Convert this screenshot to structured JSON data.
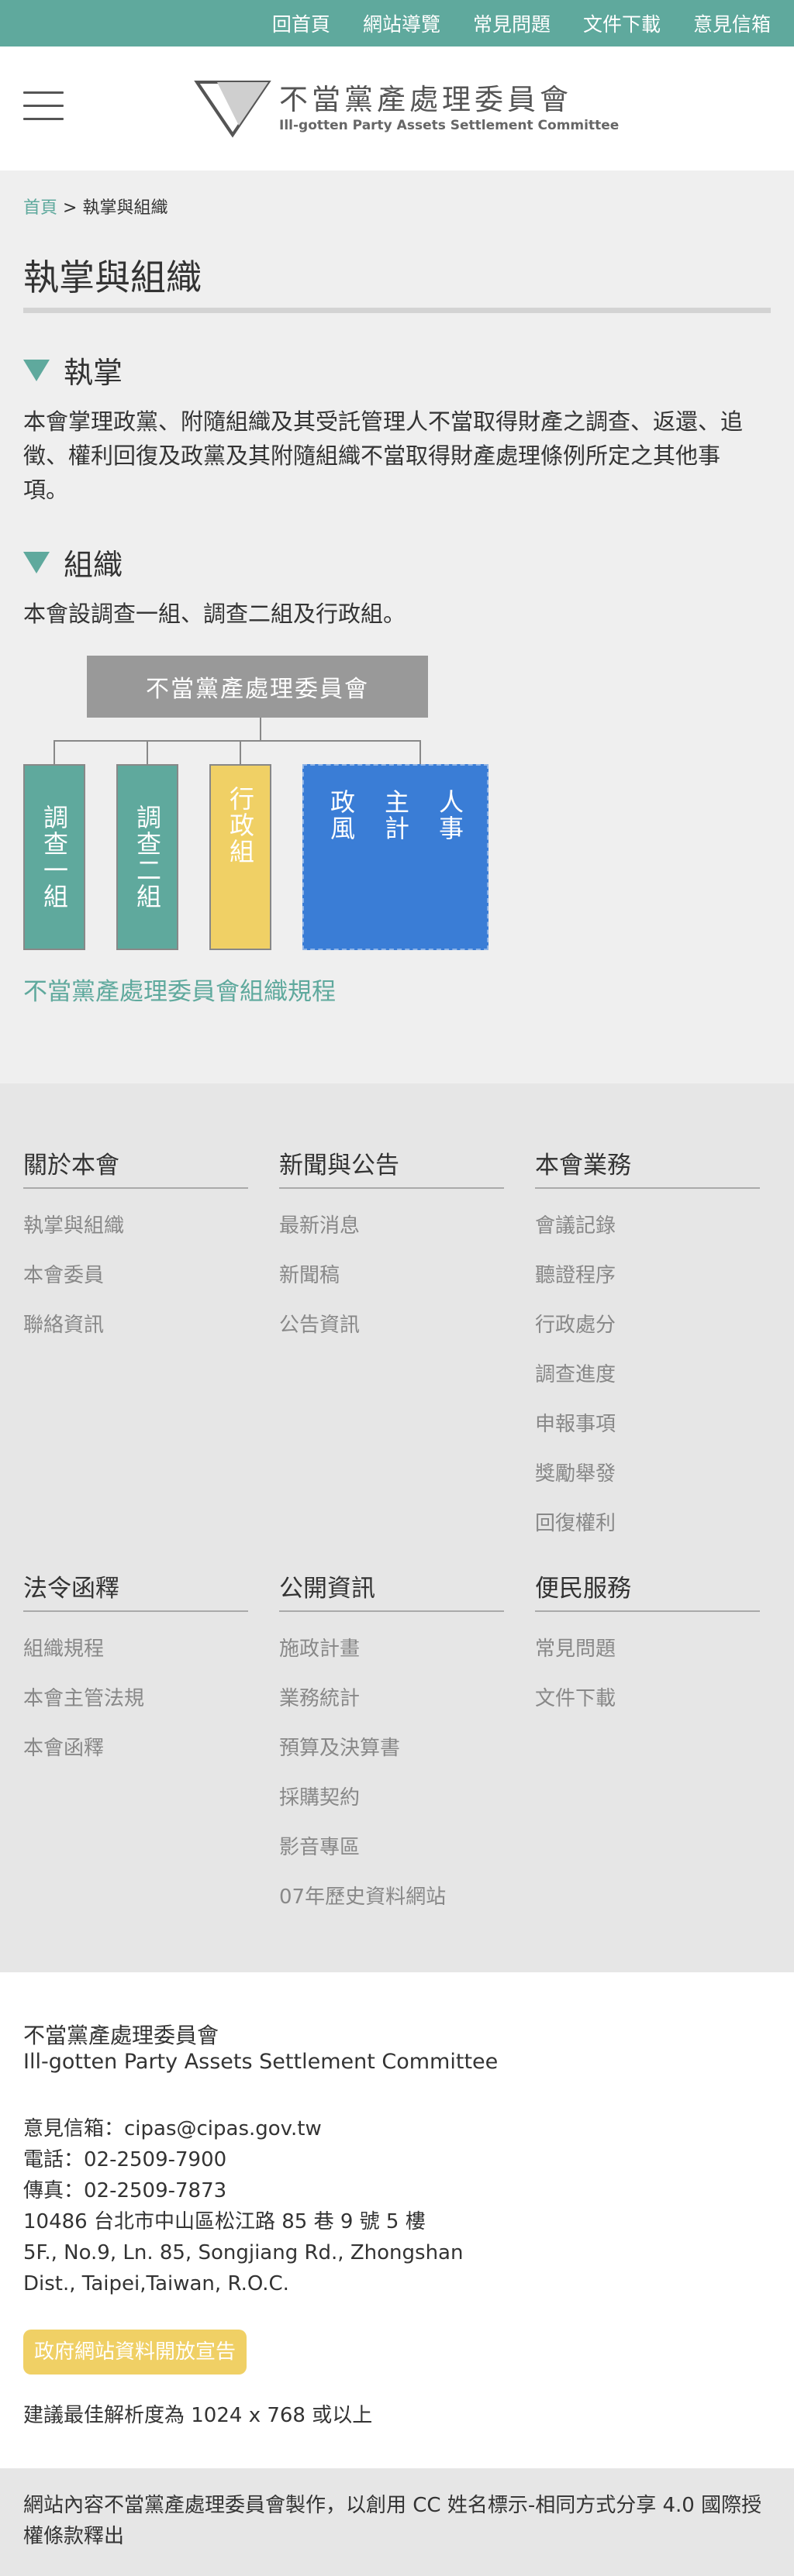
{
  "topnav": {
    "items": [
      "回首頁",
      "網站導覽",
      "常見問題",
      "文件下載",
      "意見信箱"
    ]
  },
  "header": {
    "logo_zh": "不當黨產處理委員會",
    "logo_en": "Ill-gotten Party Assets Settlement Committee",
    "menu_icon": "hamburger-icon"
  },
  "breadcrumb": {
    "home": "首頁",
    "separator": ">",
    "current": "執掌與組織"
  },
  "page": {
    "title": "執掌與組織"
  },
  "sections": {
    "duties": {
      "heading": "執掌",
      "text": "本會掌理政黨、附隨組織及其受託管理人不當取得財產之調查、返還、追徵、權利回復及政黨及其附隨組織不當取得財產處理條例所定之其他事項。"
    },
    "org": {
      "heading": "組織",
      "text": "本會設調查一組、調查二組及行政組。"
    }
  },
  "org_chart": {
    "root": "不當黨產處理委員會",
    "units": [
      {
        "label": "調查一組",
        "color": "#5fa99d"
      },
      {
        "label": "調查二組",
        "color": "#5fa99d"
      },
      {
        "label": "行政組",
        "color": "#f0d065"
      }
    ],
    "staff": {
      "columns": [
        "人事",
        "主計",
        "政風"
      ],
      "color": "#3a7dd6"
    },
    "link": "不當黨產處理委員會組織規程"
  },
  "footer_nav": [
    {
      "title": "關於本會",
      "items": [
        "執掌與組織",
        "本會委員",
        "聯絡資訊"
      ]
    },
    {
      "title": "新聞與公告",
      "items": [
        "最新消息",
        "新聞稿",
        "公告資訊"
      ]
    },
    {
      "title": "本會業務",
      "items": [
        "會議記錄",
        "聽證程序",
        "行政處分",
        "調查進度",
        "申報事項",
        "獎勵舉發",
        "回復權利"
      ]
    },
    {
      "title": "法令函釋",
      "items": [
        "組織規程",
        "本會主管法規",
        "本會函釋"
      ]
    },
    {
      "title": "公開資訊",
      "items": [
        "施政計畫",
        "業務統計",
        "預算及決算書",
        "採購契約",
        "影音專區",
        "07年歷史資料網站"
      ]
    },
    {
      "title": "便民服務",
      "items": [
        "常見問題",
        "文件下載"
      ]
    }
  ],
  "info": {
    "org_zh": "不當黨產處理委員會",
    "org_en": "Ill-gotten Party Assets Settlement Committee",
    "email": "意見信箱：cipas@cipas.gov.tw",
    "phone": "電話：02-2509-7900",
    "fax": "傳真：02-2509-7873",
    "address_zh": "10486 台北市中山區松江路 85 巷 9 號 5 樓",
    "address_en_1": "5F., No.9, Ln. 85, Songjiang Rd., Zhongshan",
    "address_en_2": "Dist., Taipei,Taiwan, R.O.C.",
    "open_data_badge": "政府網站資料開放宣告",
    "resolution": "建議最佳解析度為 1024 x 768 或以上"
  },
  "copyright": "網站內容不當黨產處理委員會製作，以創用 CC 姓名標示-相同方式分享 4.0 國際授權條款釋出",
  "colors": {
    "accent": "#5fa99d",
    "yellow": "#f0d065",
    "blue": "#3a7dd6",
    "grey_box": "#999999"
  }
}
